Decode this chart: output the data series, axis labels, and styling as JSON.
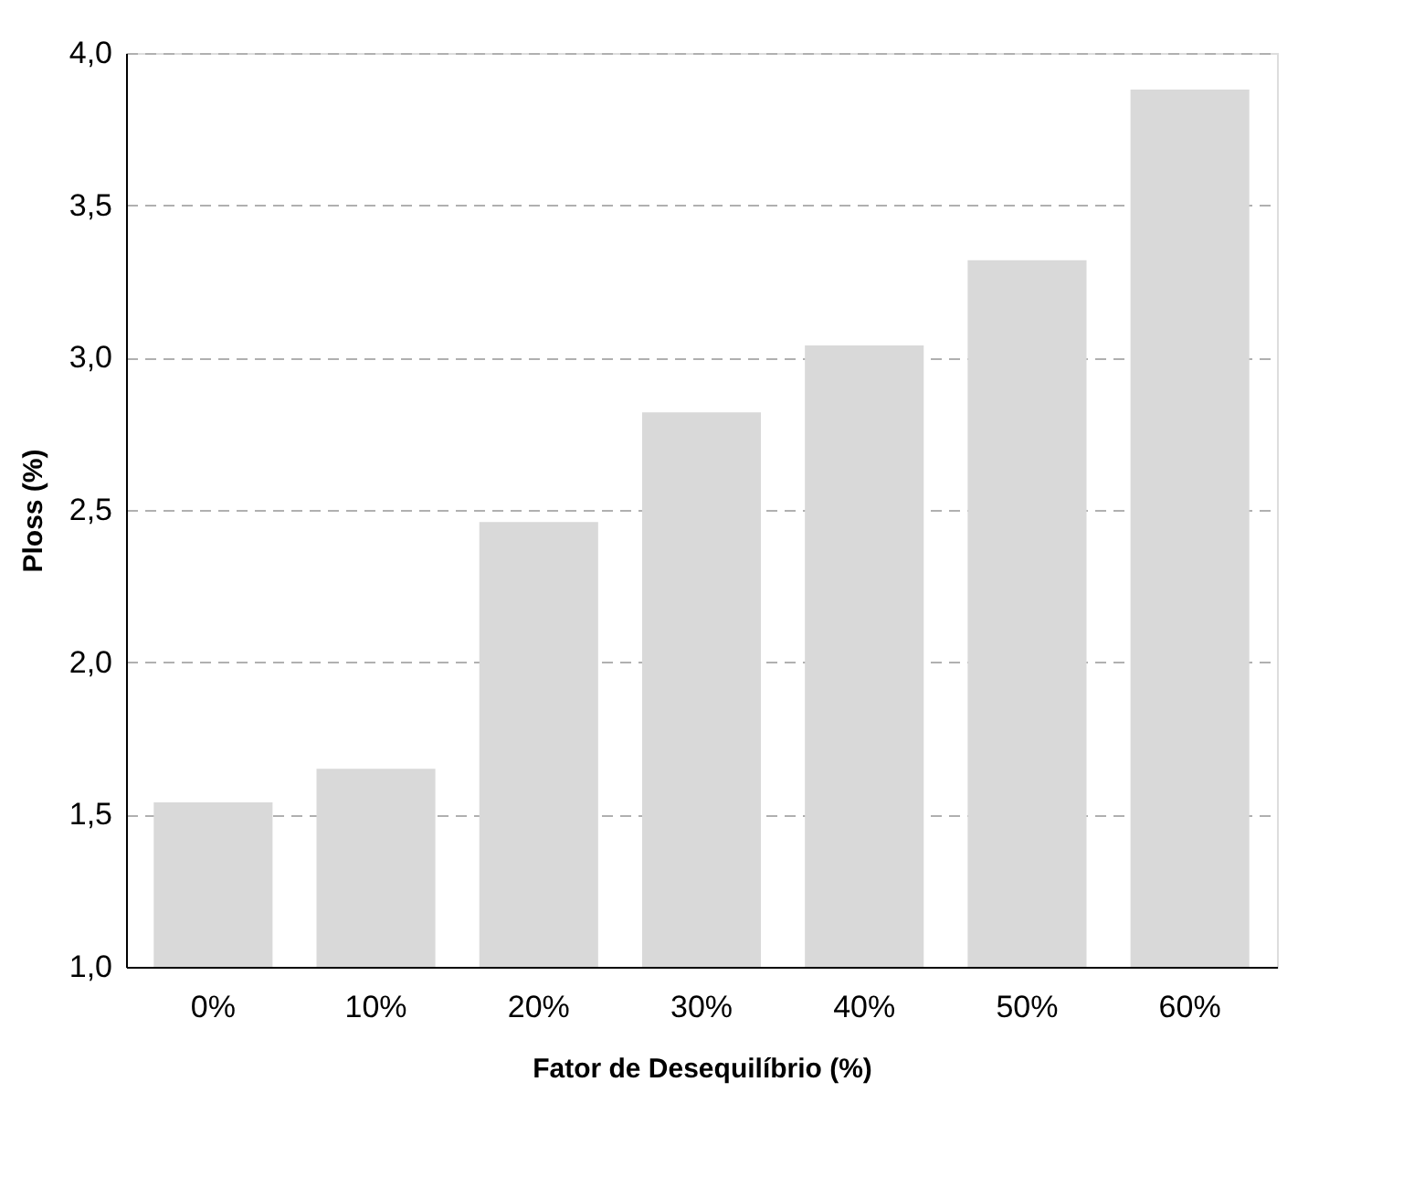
{
  "chart_data": {
    "type": "bar",
    "xlabel": "Fator de Desequilíbrio (%)",
    "ylabel": "Ploss (%)",
    "categories": [
      "0%",
      "10%",
      "20%",
      "30%",
      "40%",
      "50%",
      "60%"
    ],
    "values": [
      1.54,
      1.65,
      2.46,
      2.82,
      3.04,
      3.32,
      3.88
    ],
    "color": "#d9d9d9",
    "ylim": [
      1.0,
      4.0
    ],
    "yticks": [
      {
        "value": 1.0,
        "label": "1,0"
      },
      {
        "value": 1.5,
        "label": "1,5"
      },
      {
        "value": 2.0,
        "label": "2,0"
      },
      {
        "value": 2.5,
        "label": "2,5"
      },
      {
        "value": 3.0,
        "label": "3,0"
      },
      {
        "value": 3.5,
        "label": "3,5"
      },
      {
        "value": 4.0,
        "label": "4,0"
      }
    ],
    "grid": "y"
  }
}
